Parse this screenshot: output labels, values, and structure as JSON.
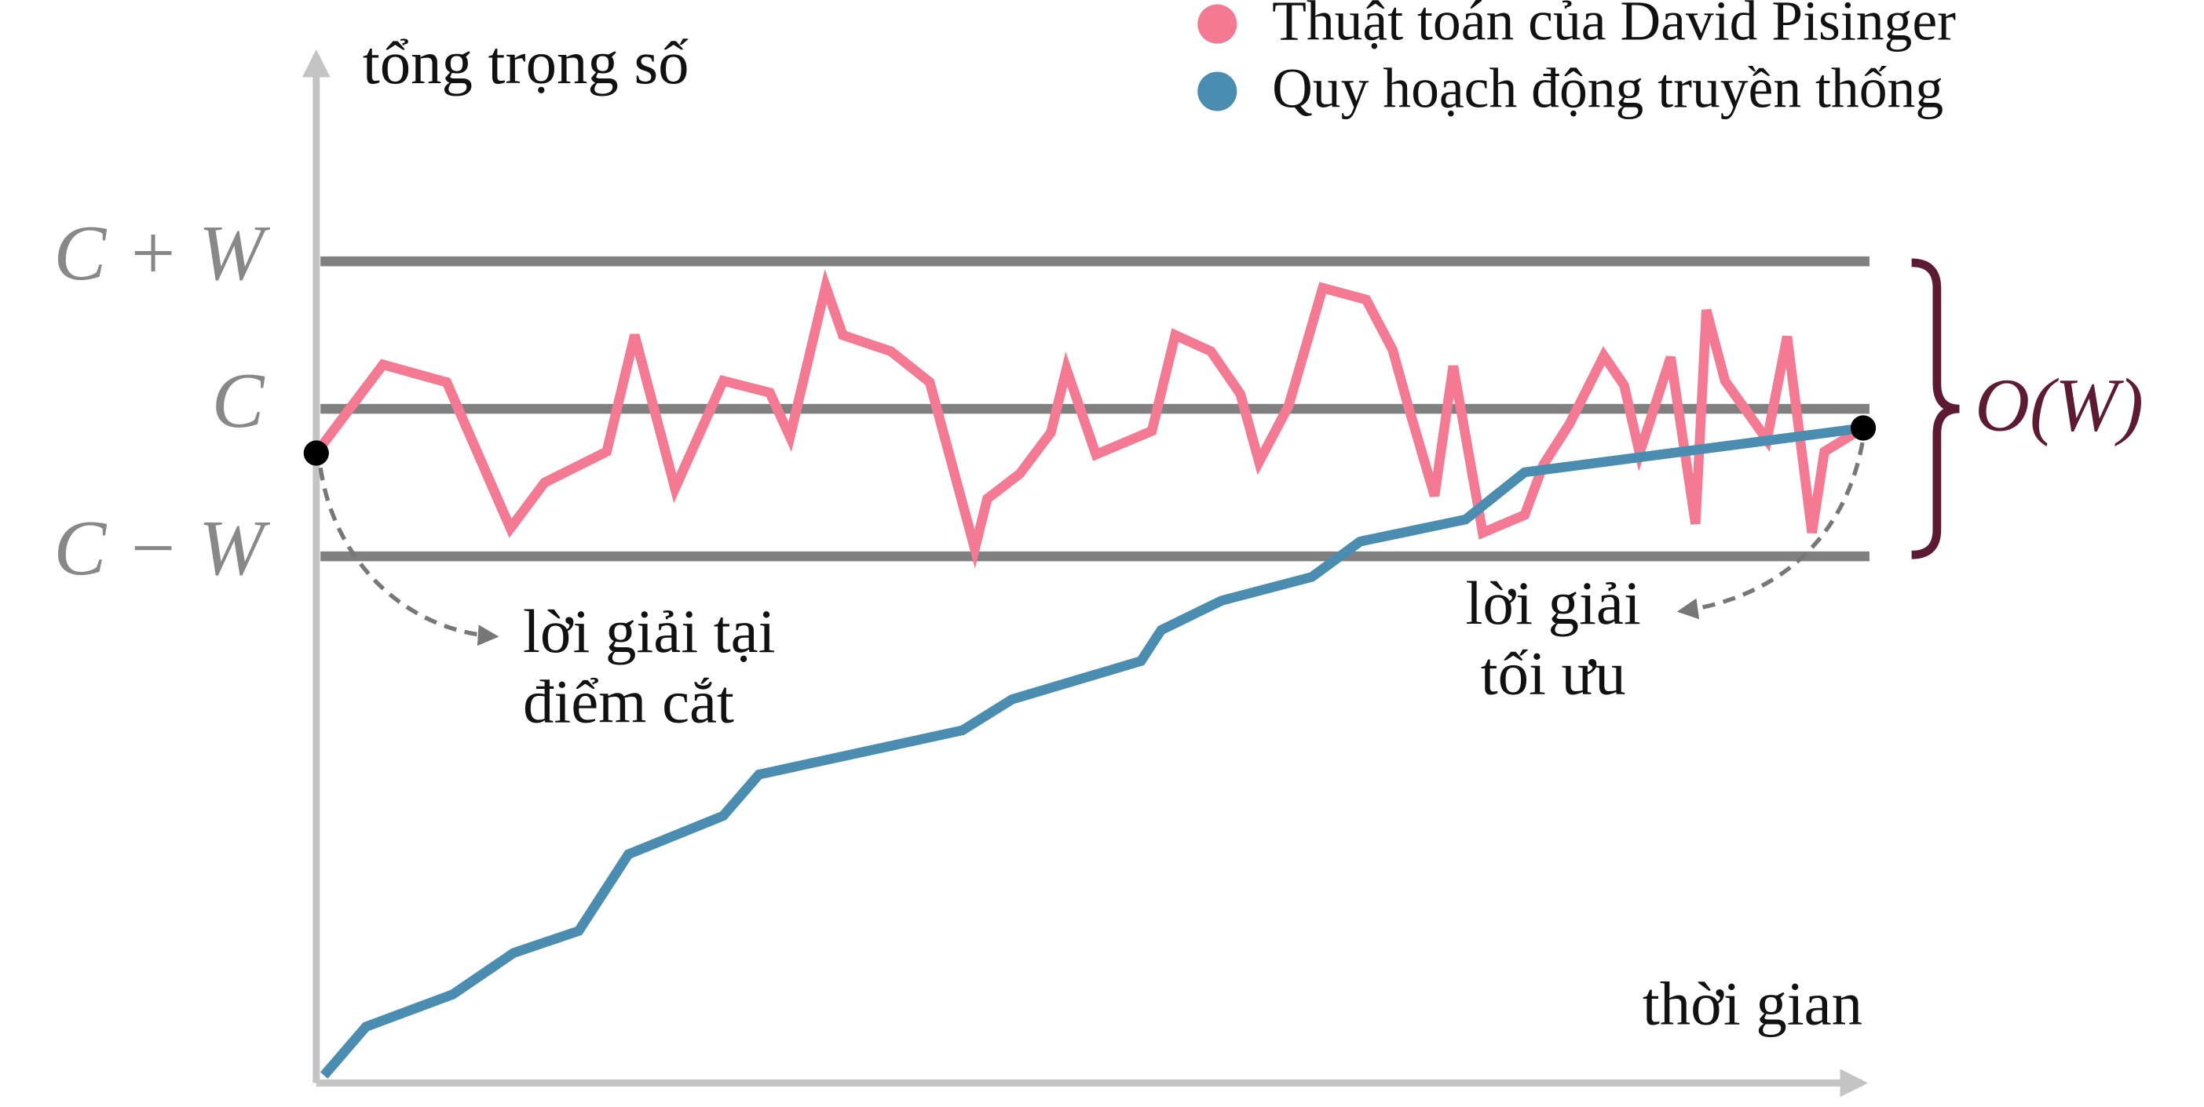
{
  "chart_data": {
    "type": "line",
    "ylabel": "tổng trọng số",
    "xlabel": "thời gian",
    "xlim": [
      0,
      100
    ],
    "ylim": [
      -4.55,
      2.43
    ],
    "yticks": [
      {
        "value": -1,
        "label": "C − W"
      },
      {
        "value": 0,
        "label": "C"
      },
      {
        "value": 1,
        "label": "C + W"
      }
    ],
    "grid": true,
    "legend": "top-right",
    "series": [
      {
        "name": "Thuật toán của David Pisinger",
        "color": "#f47a93",
        "x": [
          0,
          4.3,
          8.4,
          12.5,
          14.7,
          18.7,
          20.5,
          23.1,
          26.2,
          29.2,
          30.5,
          32.8,
          33.9,
          37.0,
          39.5,
          42.4,
          43.2,
          45.3,
          47.3,
          48.3,
          50.2,
          53.8,
          55.3,
          57.6,
          59.5,
          60.7,
          62.6,
          64.8,
          67.6,
          69.3,
          70.3,
          72.0,
          73.2,
          75.1,
          77.8,
          79.0,
          80.7,
          82.9,
          84.2,
          85.2,
          87.2,
          88.8,
          89.5,
          90.7,
          93.4,
          94.7,
          96.3,
          97.1,
          99.6
        ],
        "values": [
          -0.3,
          0.3,
          0.18,
          -0.81,
          -0.5,
          -0.29,
          0.5,
          -0.54,
          0.19,
          0.11,
          -0.19,
          0.83,
          0.5,
          0.39,
          0.18,
          -0.95,
          -0.61,
          -0.44,
          -0.16,
          0.27,
          -0.31,
          -0.15,
          0.5,
          0.39,
          0.1,
          -0.36,
          0.02,
          0.82,
          0.74,
          0.4,
          0.02,
          -0.59,
          0.29,
          -0.84,
          -0.72,
          -0.38,
          -0.1,
          0.36,
          0.16,
          -0.3,
          0.35,
          -0.78,
          0.67,
          0.19,
          -0.21,
          0.49,
          -0.84,
          -0.29,
          -0.13
        ]
      },
      {
        "name": "Quy hoạch động truyền thống",
        "color": "#4a8db0",
        "x": [
          0.5,
          3.2,
          8.8,
          12.7,
          16.9,
          20.1,
          26.2,
          28.5,
          41.6,
          44.8,
          53.1,
          54.4,
          58.3,
          64.1,
          67.2,
          74.0,
          77.8,
          99.6
        ],
        "values": [
          -4.52,
          -4.19,
          -3.97,
          -3.69,
          -3.54,
          -3.02,
          -2.76,
          -2.48,
          -2.18,
          -1.97,
          -1.71,
          -1.5,
          -1.3,
          -1.14,
          -0.9,
          -0.75,
          -0.43,
          -0.13
        ]
      }
    ],
    "annotations": [
      {
        "text": [
          "lời giải tại",
          "điểm cắt"
        ]
      },
      {
        "text": [
          "lời giải",
          "tối ưu"
        ]
      },
      {
        "text": "O(W)"
      }
    ]
  }
}
